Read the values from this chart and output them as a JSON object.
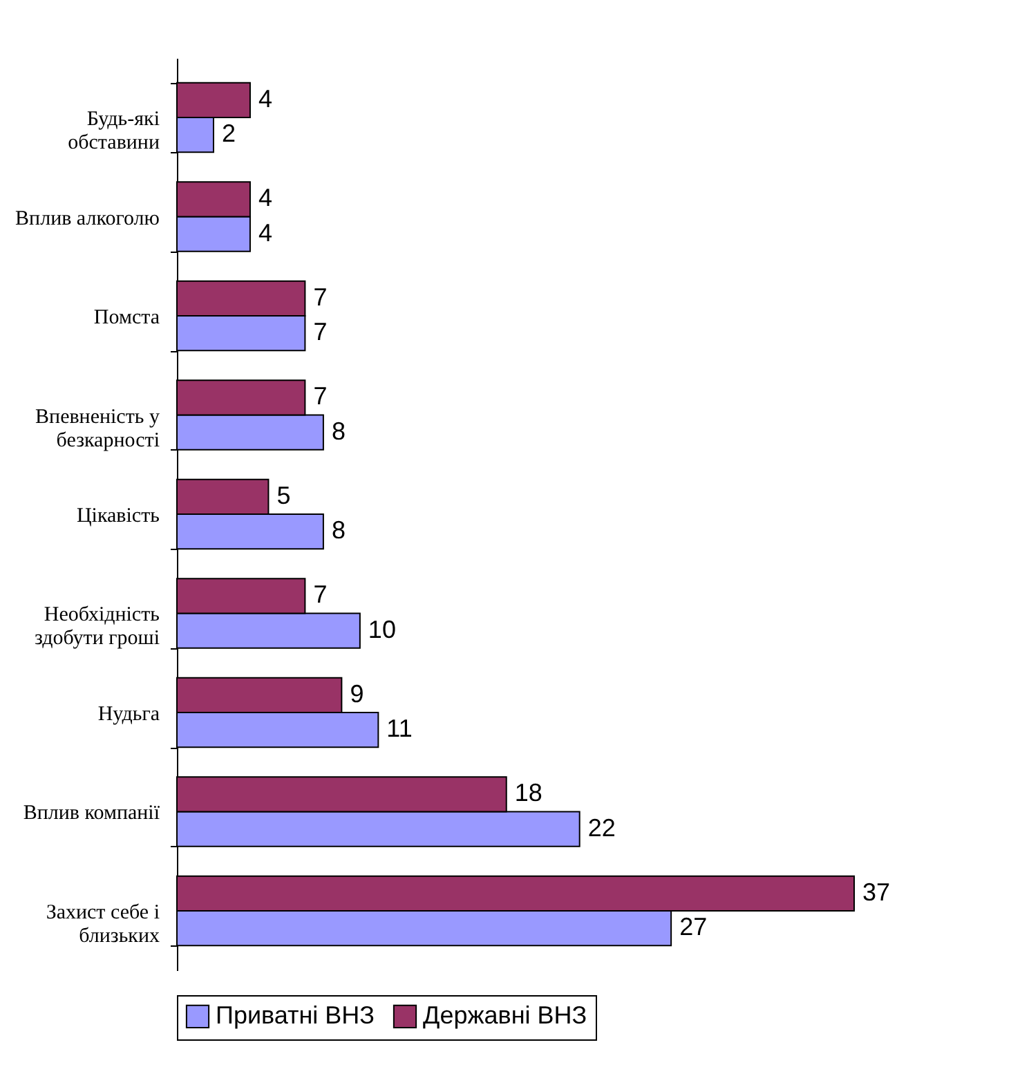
{
  "chart_data": {
    "type": "bar",
    "orientation": "horizontal",
    "data_labels": true,
    "legend": "bottom",
    "categories": [
      "Будь-які обставини",
      "Вплив алкоголю",
      "Помста",
      "Впевненість у безкарності",
      "Цікавість",
      "Необхідність здобути гроші",
      "Нудьга",
      "Вплив компанії",
      "Захист себе і близьких"
    ],
    "series": [
      {
        "name": "Приватні ВНЗ",
        "color": "#9999ff",
        "values": [
          2,
          4,
          7,
          8,
          8,
          10,
          11,
          22,
          27
        ]
      },
      {
        "name": "Державні ВНЗ",
        "color": "#993366",
        "values": [
          4,
          4,
          7,
          7,
          5,
          7,
          9,
          18,
          37
        ]
      }
    ]
  }
}
